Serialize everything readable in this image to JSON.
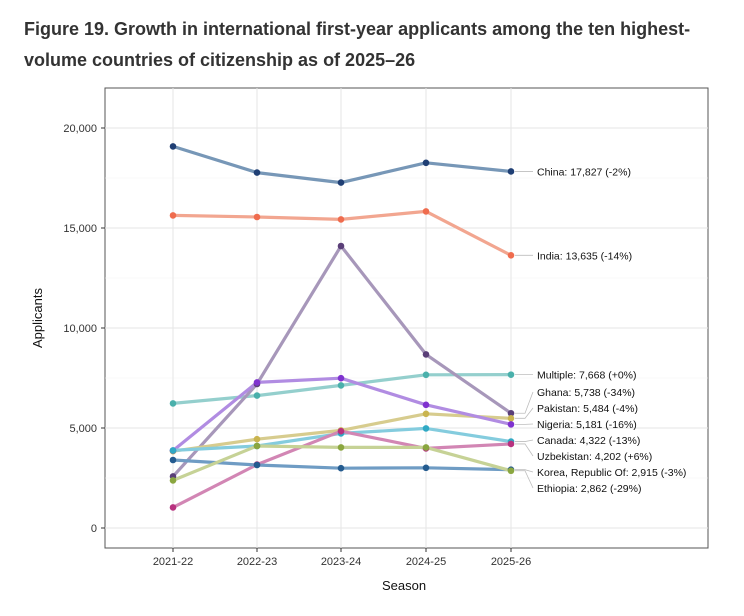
{
  "figure": {
    "title": "Figure 19. Growth in international first-year applicants among the ten highest-volume countries of citizenship as of 2025–26"
  },
  "chart_data": {
    "type": "line",
    "x": [
      "2021-22",
      "2022-23",
      "2023-24",
      "2024-25",
      "2025-26"
    ],
    "xlabel": "Season",
    "ylabel": "Applicants",
    "ylim": [
      -1000,
      22000
    ],
    "yticks": [
      0,
      5000,
      10000,
      15000,
      20000
    ],
    "ytick_labels": [
      "0",
      "5,000",
      "10,000",
      "15,000",
      "20,000"
    ],
    "grid": true,
    "series": [
      {
        "name": "China",
        "label": "China: 17,827 (-2%)",
        "color": "#7797b7",
        "dot": "#1f3f74",
        "values": [
          19080,
          17770,
          17270,
          18260,
          17827
        ]
      },
      {
        "name": "India",
        "label": "India: 13,635 (-14%)",
        "color": "#f2a690",
        "dot": "#ef6c4e",
        "values": [
          15630,
          15550,
          15430,
          15830,
          13635
        ]
      },
      {
        "name": "Multiple",
        "label": "Multiple: 7,668 (+0%)",
        "color": "#94cfcd",
        "dot": "#4ab0ab",
        "values": [
          6230,
          6620,
          7130,
          7660,
          7668
        ]
      },
      {
        "name": "Ghana",
        "label": "Ghana: 5,738 (-34%)",
        "color": "#a797ba",
        "dot": "#5a3f78",
        "values": [
          2580,
          7200,
          14100,
          8680,
          5738
        ]
      },
      {
        "name": "Pakistan",
        "label": "Pakistan: 5,484 (-4%)",
        "color": "#d7cc8e",
        "dot": "#c9b44f",
        "values": [
          3840,
          4440,
          4880,
          5710,
          5484
        ]
      },
      {
        "name": "Nigeria",
        "label": "Nigeria: 5,181 (-16%)",
        "color": "#b18ce2",
        "dot": "#7f32cf",
        "values": [
          3870,
          7280,
          7490,
          6160,
          5181
        ]
      },
      {
        "name": "Canada",
        "label": "Canada: 4,322 (-13%)",
        "color": "#84ccde",
        "dot": "#30a9c4",
        "values": [
          3880,
          4100,
          4730,
          4980,
          4322
        ]
      },
      {
        "name": "Uzbekistan",
        "label": "Uzbekistan: 4,202 (+6%)",
        "color": "#d286b4",
        "dot": "#b8327f",
        "values": [
          1030,
          3170,
          4840,
          3980,
          4202
        ]
      },
      {
        "name": "Korea, Republic Of",
        "label": "Korea, Republic Of: 2,915 (-3%)",
        "color": "#6f9cc4",
        "dot": "#245b8f",
        "values": [
          3400,
          3150,
          2990,
          3010,
          2915
        ]
      },
      {
        "name": "Ethiopia",
        "label": "Ethiopia: 2,862 (-29%)",
        "color": "#c6d296",
        "dot": "#8aa63f",
        "values": [
          2380,
          4100,
          4030,
          4030,
          2862
        ]
      }
    ]
  }
}
